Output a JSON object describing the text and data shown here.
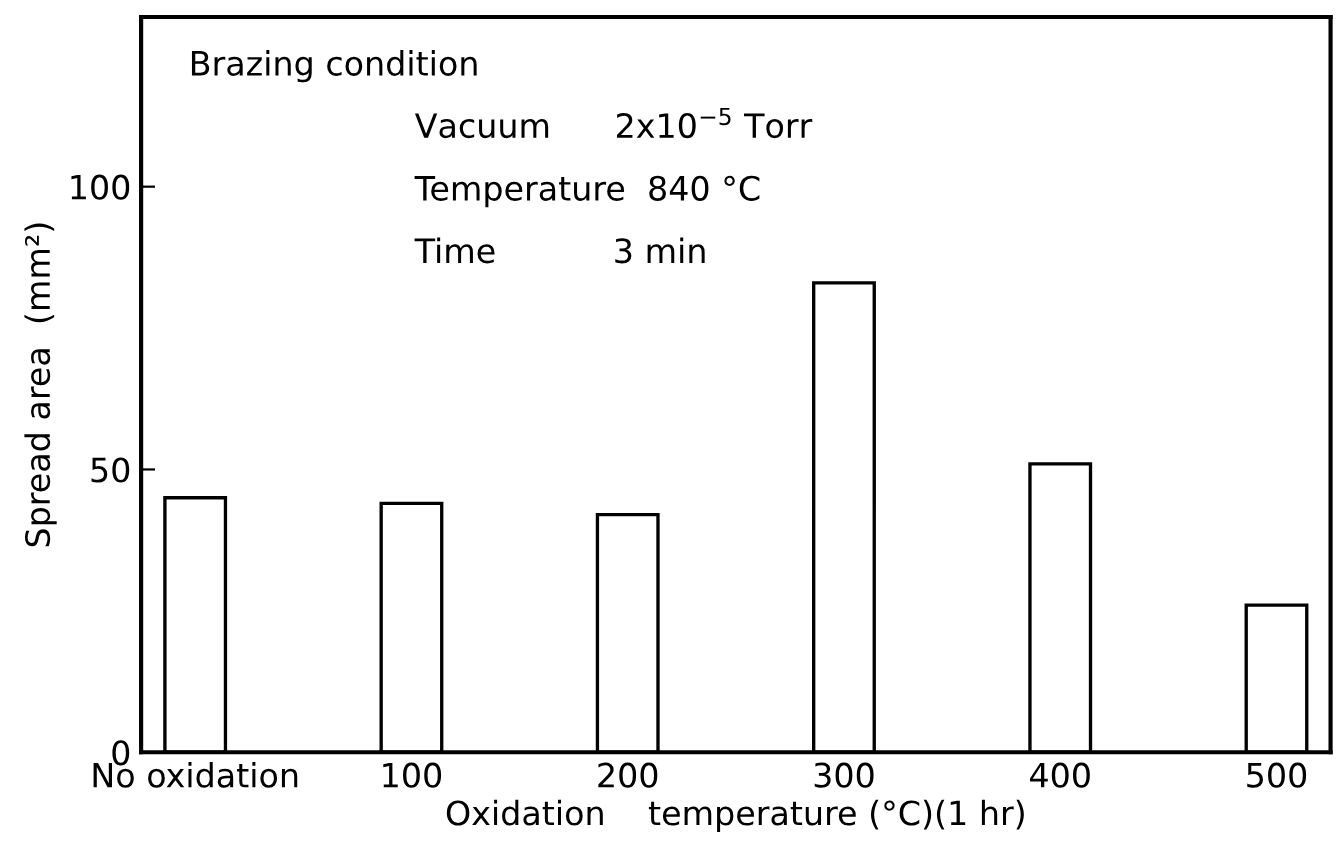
{
  "chart_data": {
    "type": "bar",
    "xlabel": "Oxidation    temperature (°C)(1 hr)",
    "ylabel": "Spread area  (mm²)",
    "categories": [
      "No oxidation",
      "100",
      "200",
      "300",
      "400",
      "500"
    ],
    "values": [
      45,
      44,
      42,
      83,
      51,
      26
    ],
    "color": "#ffffff",
    "ylim": [
      0,
      130
    ],
    "yticks": [
      0,
      50,
      100
    ],
    "grid": false,
    "legend": false,
    "annotations": [
      "Brazing condition",
      "Vacuum      2x10$^{−5}$ Torr",
      "Temperature  840 °C",
      "Time           3 min"
    ]
  }
}
